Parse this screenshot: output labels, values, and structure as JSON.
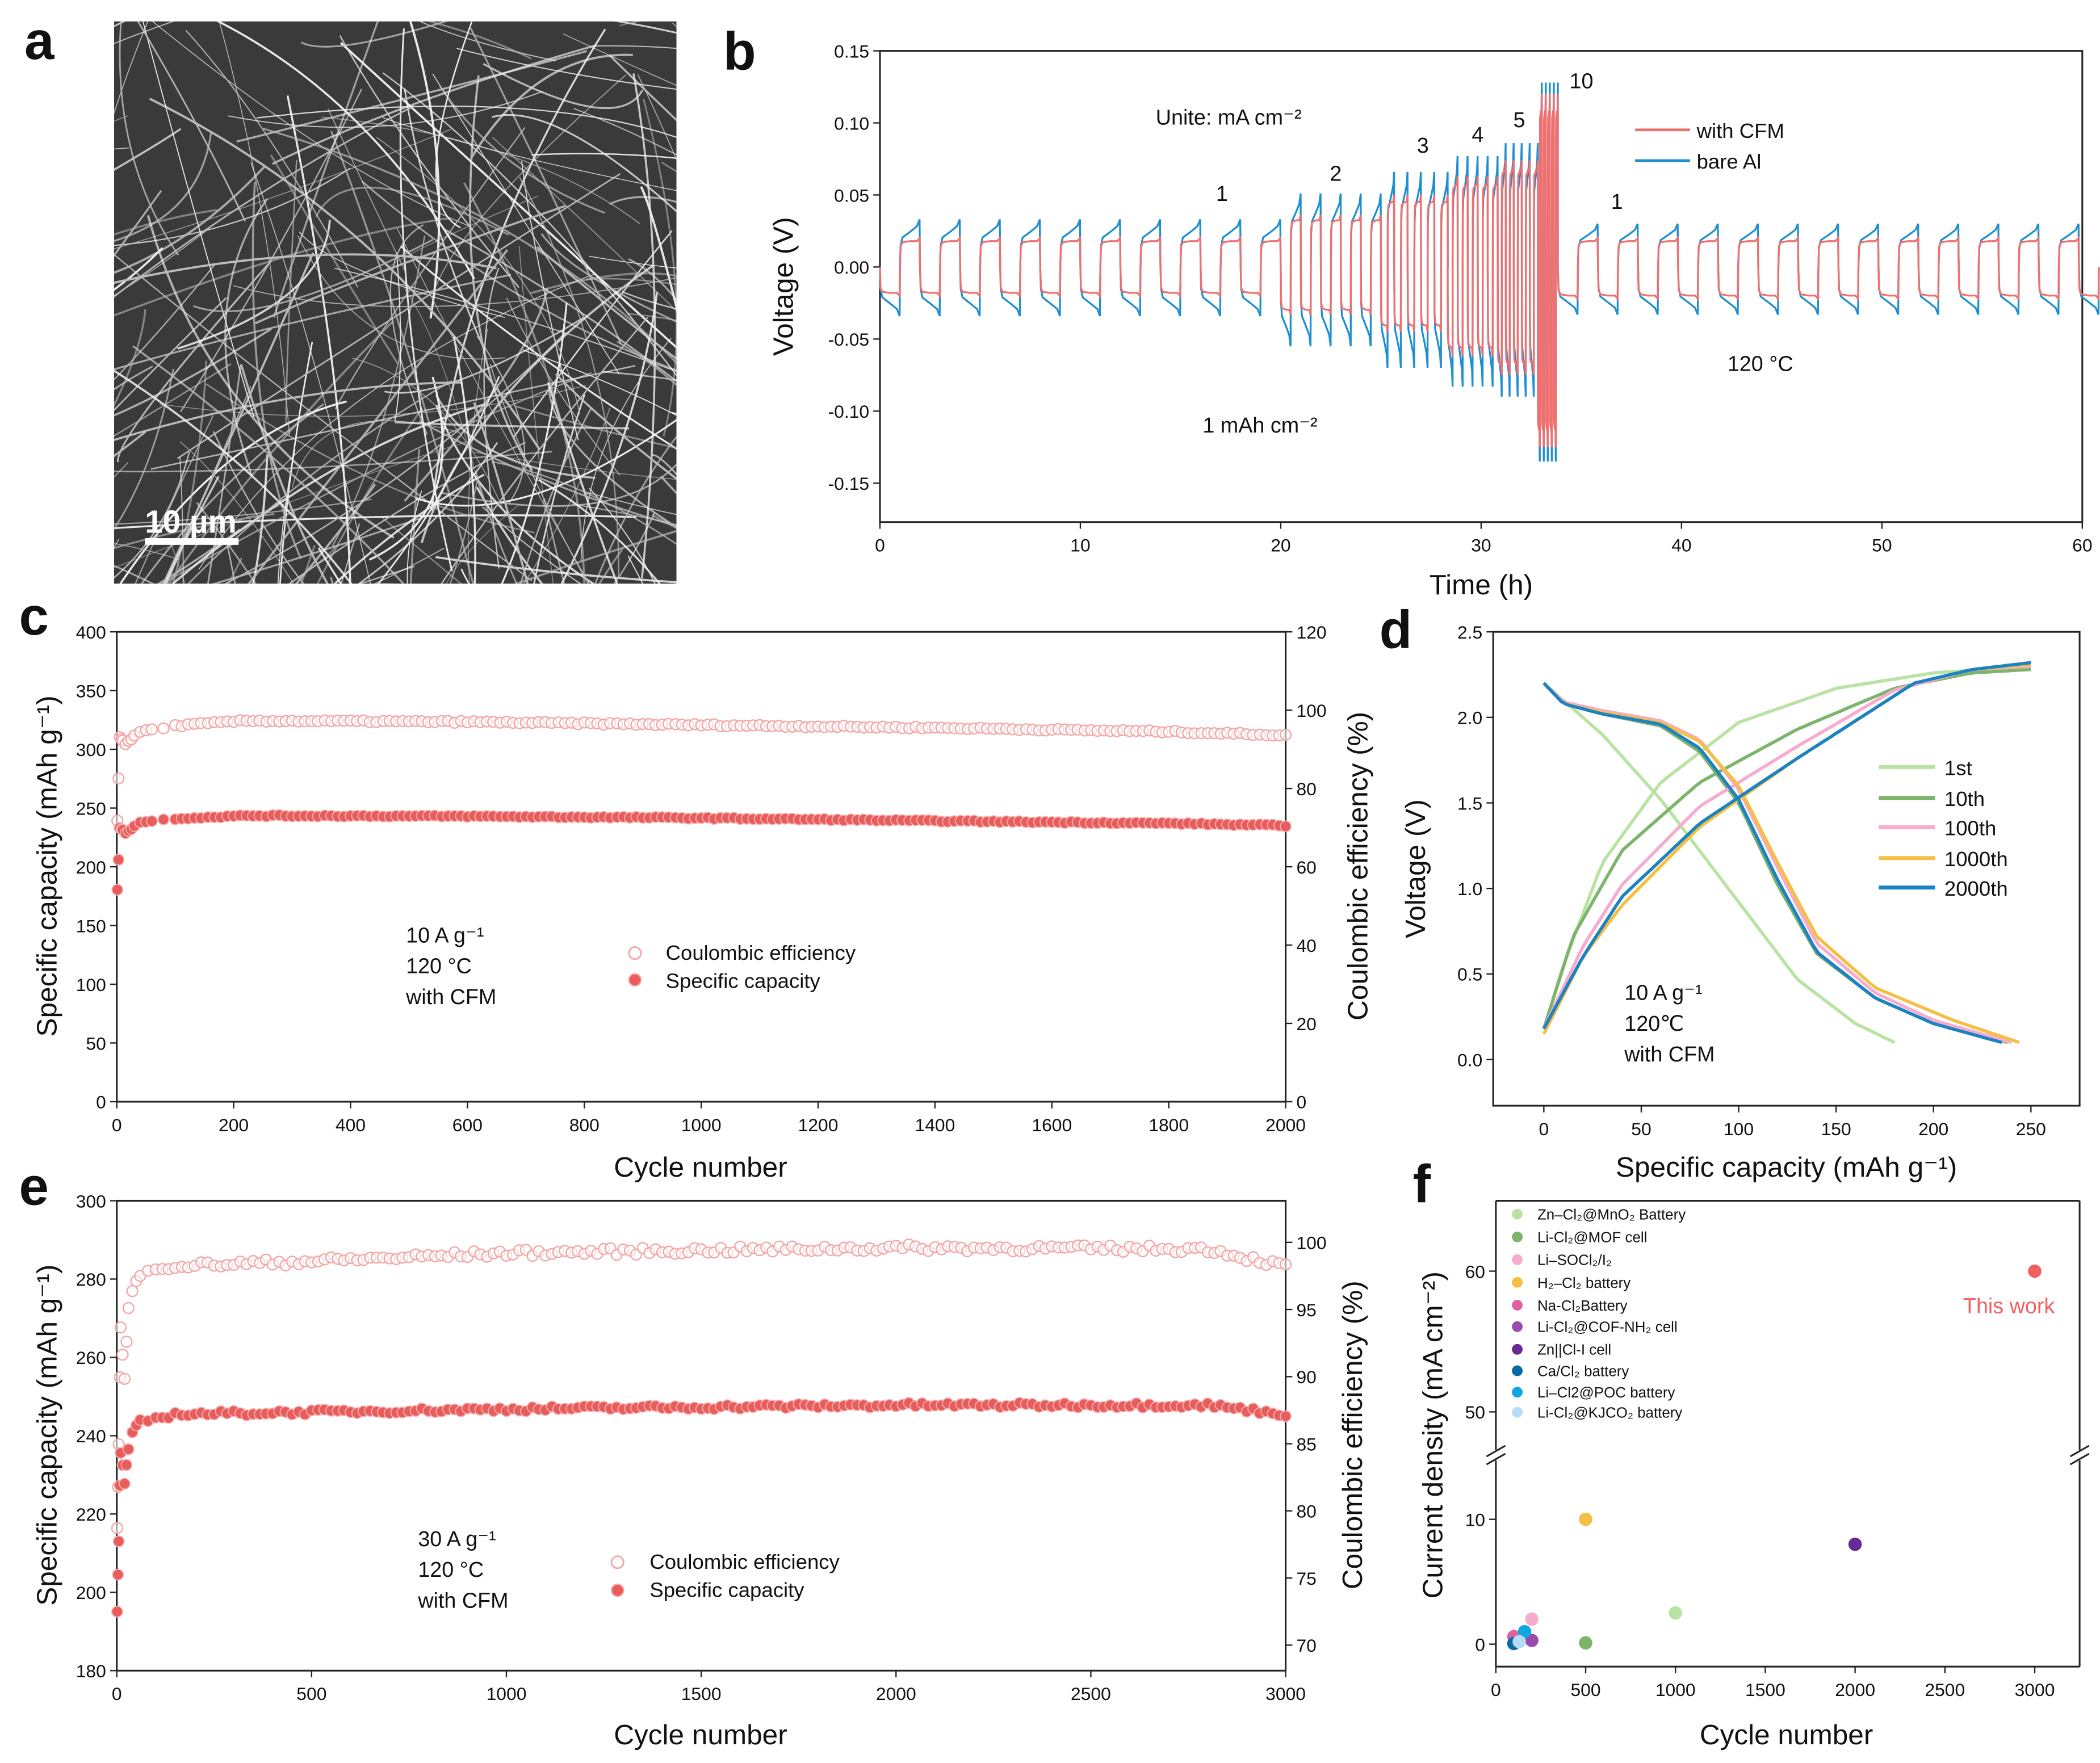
{
  "panel_labels": {
    "a": "a",
    "b": "b",
    "c": "c",
    "d": "d",
    "e": "e",
    "f": "f"
  },
  "panel_a": {
    "scale_bar_label": "10 µm",
    "image_description_colors": {
      "background": "#3a3a3a",
      "fiber": "#e8e8e8"
    }
  },
  "chart_data": [
    {
      "id": "b",
      "type": "line",
      "xlabel": "Time (h)",
      "ylabel": "Voltage (V)",
      "xlim": [
        0,
        60
      ],
      "ylim": [
        -0.177,
        0.15
      ],
      "xticks": [
        0,
        10,
        20,
        30,
        40,
        50,
        60
      ],
      "yticks": [
        -0.15,
        -0.1,
        -0.05,
        0.0,
        0.05,
        0.1,
        0.15
      ],
      "ytick_labels": [
        "-0.15",
        "-0.10",
        "-0.05",
        "0.00",
        "0.05",
        "0.10",
        "0.15"
      ],
      "series": [
        {
          "name": "with CFM",
          "color": "#f07070"
        },
        {
          "name": "bare Al",
          "color": "#1f8fd0"
        }
      ],
      "segments": [
        {
          "current": 1,
          "start": 0,
          "end": 20,
          "cfm": [
            0.02,
            -0.02
          ],
          "bare": [
            0.033,
            -0.034
          ]
        },
        {
          "current": 2,
          "start": 20,
          "end": 25,
          "cfm": [
            0.036,
            -0.033
          ],
          "bare": [
            0.051,
            -0.055
          ]
        },
        {
          "current": 3,
          "start": 25,
          "end": 28.33,
          "cfm": [
            0.05,
            -0.045
          ],
          "bare": [
            0.066,
            -0.07
          ]
        },
        {
          "current": 4,
          "start": 28.33,
          "end": 30.83,
          "cfm": [
            0.063,
            -0.062
          ],
          "bare": [
            0.077,
            -0.083
          ]
        },
        {
          "current": 5,
          "start": 30.83,
          "end": 32.83,
          "cfm": [
            0.074,
            -0.075
          ],
          "bare": [
            0.086,
            -0.09
          ]
        },
        {
          "current": 10,
          "start": 32.83,
          "end": 33.83,
          "cfm": [
            0.12,
            -0.125
          ],
          "bare": [
            0.128,
            -0.135
          ]
        },
        {
          "current": 1,
          "start": 33.83,
          "end": 60,
          "cfm": [
            0.02,
            -0.022
          ],
          "bare": [
            0.03,
            -0.033
          ]
        }
      ],
      "annotations": {
        "unit": "Unite: mA cm⁻²",
        "areal": "1 mAh cm⁻²",
        "temp": "120 °C",
        "c1": "1",
        "c2": "2",
        "c3": "3",
        "c4": "4",
        "c5": "5",
        "c10": "10",
        "c1b": "1"
      }
    },
    {
      "id": "c",
      "type": "scatter",
      "xlabel": "Cycle number",
      "ylabel": "Specific capacity (mAh g⁻¹)",
      "y2label": "Coulombic efficiency (%)",
      "xlim": [
        0,
        2000
      ],
      "ylim": [
        0,
        400
      ],
      "y2lim": [
        0,
        120
      ],
      "xticks": [
        0,
        200,
        400,
        600,
        800,
        1000,
        1200,
        1400,
        1600,
        1800,
        2000
      ],
      "yticks": [
        0,
        50,
        100,
        150,
        200,
        250,
        300,
        350,
        400
      ],
      "y2ticks": [
        0,
        20,
        40,
        60,
        80,
        100,
        120
      ],
      "series": [
        {
          "name": "Coulombic efficiency",
          "axis": "right",
          "marker": "open-circle",
          "color": "#f3a6a6",
          "keypoints": [
            [
              1,
              72
            ],
            [
              5,
              93
            ],
            [
              15,
              91.5
            ],
            [
              40,
              94.5
            ],
            [
              100,
              96
            ],
            [
              220,
              97.3
            ],
            [
              600,
              97
            ],
            [
              1000,
              96.2
            ],
            [
              1400,
              95.5
            ],
            [
              1800,
              94.5
            ],
            [
              2000,
              93.6
            ]
          ]
        },
        {
          "name": "Specific capacity",
          "axis": "left",
          "marker": "filled-circle",
          "color": "#e85c5c",
          "keypoints": [
            [
              1,
              180
            ],
            [
              5,
              233
            ],
            [
              15,
              229
            ],
            [
              40,
              238
            ],
            [
              100,
              241
            ],
            [
              220,
              243.5
            ],
            [
              600,
              243
            ],
            [
              1000,
              241.5
            ],
            [
              1400,
              239
            ],
            [
              1800,
              237
            ],
            [
              2000,
              235
            ]
          ]
        }
      ],
      "annotations": [
        "10 A g⁻¹",
        "120 °C",
        "with CFM"
      ]
    },
    {
      "id": "d",
      "type": "line",
      "xlabel": "Specific capacity (mAh g⁻¹)",
      "ylabel": "Voltage (V)",
      "xlim": [
        -26,
        275
      ],
      "ylim": [
        -0.27,
        2.5
      ],
      "xticks": [
        0,
        50,
        100,
        150,
        200,
        250
      ],
      "yticks": [
        0,
        0.5,
        1,
        1.5,
        2,
        2.5
      ],
      "ytick_labels": [
        "0.0",
        "0.5",
        "1.0",
        "1.5",
        "2.0",
        "2.5"
      ],
      "series": [
        {
          "name": "1st",
          "color": "#b8e3a2",
          "discharge": [
            [
              0,
              2.2
            ],
            [
              10,
              2.1
            ],
            [
              30,
              1.9
            ],
            [
              60,
              1.52
            ],
            [
              100,
              0.92
            ],
            [
              130,
              0.47
            ],
            [
              160,
              0.21
            ],
            [
              180,
              0.1
            ]
          ],
          "charge": [
            [
              0,
              0.18
            ],
            [
              10,
              0.55
            ],
            [
              30,
              1.15
            ],
            [
              60,
              1.62
            ],
            [
              100,
              1.97
            ],
            [
              150,
              2.17
            ],
            [
              200,
              2.26
            ],
            [
              250,
              2.3
            ]
          ]
        },
        {
          "name": "10th",
          "color": "#7db46b",
          "discharge": [
            [
              0,
              2.2
            ],
            [
              10,
              2.08
            ],
            [
              30,
              2.02
            ],
            [
              60,
              1.95
            ],
            [
              80,
              1.8
            ],
            [
              100,
              1.5
            ],
            [
              120,
              1.02
            ],
            [
              140,
              0.62
            ],
            [
              170,
              0.36
            ],
            [
              200,
              0.21
            ],
            [
              238,
              0.1
            ]
          ],
          "charge": [
            [
              0,
              0.18
            ],
            [
              15,
              0.72
            ],
            [
              40,
              1.22
            ],
            [
              80,
              1.62
            ],
            [
              130,
              1.93
            ],
            [
              180,
              2.17
            ],
            [
              220,
              2.26
            ],
            [
              250,
              2.28
            ]
          ]
        },
        {
          "name": "100th",
          "color": "#f6abcf",
          "discharge": [
            [
              0,
              2.2
            ],
            [
              10,
              2.09
            ],
            [
              30,
              2.04
            ],
            [
              60,
              1.98
            ],
            [
              80,
              1.87
            ],
            [
              100,
              1.58
            ],
            [
              120,
              1.12
            ],
            [
              140,
              0.68
            ],
            [
              170,
              0.39
            ],
            [
              200,
              0.23
            ],
            [
              240,
              0.1
            ]
          ],
          "charge": [
            [
              0,
              0.18
            ],
            [
              20,
              0.66
            ],
            [
              40,
              1.02
            ],
            [
              80,
              1.48
            ],
            [
              130,
              1.83
            ],
            [
              180,
              2.16
            ],
            [
              220,
              2.28
            ],
            [
              250,
              2.3
            ]
          ]
        },
        {
          "name": "1000th",
          "color": "#f4c043",
          "discharge": [
            [
              0,
              2.2
            ],
            [
              10,
              2.08
            ],
            [
              30,
              2.03
            ],
            [
              60,
              1.97
            ],
            [
              80,
              1.86
            ],
            [
              100,
              1.6
            ],
            [
              120,
              1.15
            ],
            [
              140,
              0.72
            ],
            [
              170,
              0.42
            ],
            [
              210,
              0.23
            ],
            [
              244,
              0.1
            ]
          ],
          "charge": [
            [
              0,
              0.15
            ],
            [
              20,
              0.6
            ],
            [
              40,
              0.9
            ],
            [
              80,
              1.36
            ],
            [
              130,
              1.76
            ],
            [
              190,
              2.2
            ],
            [
              220,
              2.28
            ],
            [
              250,
              2.31
            ]
          ]
        },
        {
          "name": "2000th",
          "color": "#1b82c4",
          "discharge": [
            [
              0,
              2.2
            ],
            [
              10,
              2.08
            ],
            [
              30,
              2.02
            ],
            [
              60,
              1.96
            ],
            [
              80,
              1.82
            ],
            [
              100,
              1.52
            ],
            [
              120,
              1.05
            ],
            [
              140,
              0.63
            ],
            [
              170,
              0.36
            ],
            [
              200,
              0.21
            ],
            [
              235,
              0.1
            ]
          ],
          "charge": [
            [
              0,
              0.18
            ],
            [
              20,
              0.6
            ],
            [
              40,
              0.95
            ],
            [
              80,
              1.38
            ],
            [
              130,
              1.76
            ],
            [
              190,
              2.2
            ],
            [
              220,
              2.28
            ],
            [
              250,
              2.32
            ]
          ]
        }
      ],
      "annotations": [
        "10 A g⁻¹",
        "120℃",
        "with CFM"
      ]
    },
    {
      "id": "e",
      "type": "scatter",
      "xlabel": "Cycle number",
      "ylabel": "Specific capacity (mAh g⁻¹)",
      "y2label": "Coulombic efficiency (%)",
      "xlim": [
        0,
        3000
      ],
      "ylim": [
        180,
        300
      ],
      "y2lim": [
        68.1,
        103.1
      ],
      "xticks": [
        0,
        500,
        1000,
        1500,
        2000,
        2500,
        3000
      ],
      "yticks": [
        180,
        200,
        220,
        240,
        260,
        280,
        300
      ],
      "y2ticks": [
        70,
        75,
        80,
        85,
        90,
        95,
        100
      ],
      "series": [
        {
          "name": "Coulombic efficiency",
          "axis": "right",
          "marker": "open-circle",
          "color": "#f3a6a6",
          "keypoints": [
            [
              1,
              78.5
            ],
            [
              10,
              93.5
            ],
            [
              20,
              90
            ],
            [
              30,
              95
            ],
            [
              45,
              97
            ],
            [
              100,
              98.2
            ],
            [
              500,
              98.6
            ],
            [
              1000,
              99.2
            ],
            [
              2000,
              99.6
            ],
            [
              2800,
              99.5
            ],
            [
              3000,
              98.2
            ]
          ]
        },
        {
          "name": "Specific capacity",
          "axis": "left",
          "marker": "filled-circle",
          "color": "#e85c5c",
          "keypoints": [
            [
              1,
              195
            ],
            [
              10,
              236
            ],
            [
              20,
              228
            ],
            [
              35,
              240
            ],
            [
              60,
              243.5
            ],
            [
              150,
              245.5
            ],
            [
              1000,
              246.8
            ],
            [
              2000,
              247.8
            ],
            [
              2800,
              247.8
            ],
            [
              3000,
              245.5
            ]
          ]
        }
      ],
      "annotations": [
        "30 A g⁻¹",
        "120 °C",
        "with CFM"
      ]
    },
    {
      "id": "f",
      "type": "scatter",
      "xlabel": "Cycle number",
      "ylabel": "Current density (mA cm⁻²)",
      "xlim": [
        0,
        3250
      ],
      "ylim_lower": [
        -1.8,
        14.5
      ],
      "ylim_upper": [
        47.5,
        65
      ],
      "xticks": [
        0,
        500,
        1000,
        1500,
        2000,
        2500,
        3000
      ],
      "yticks_lower": [
        0,
        10
      ],
      "yticks_upper": [
        50,
        60
      ],
      "points": [
        {
          "name": "Zn–Cl₂@MnO₂ Battery",
          "x": 1000,
          "y": 2.5,
          "color": "#b8e3a2"
        },
        {
          "name": "Li-Cl₂@MOF cell",
          "x": 500,
          "y": 0.1,
          "color": "#7db46b"
        },
        {
          "name": "Li–SOCl₂/I₂",
          "x": 200,
          "y": 2,
          "color": "#f6abcf"
        },
        {
          "name": "H₂–Cl₂ battery",
          "x": 500,
          "y": 10,
          "color": "#f4c043"
        },
        {
          "name": "Na-Cl₂Battery",
          "x": 100,
          "y": 0.6,
          "color": "#e0609e"
        },
        {
          "name": "Li-Cl₂@COF-NH₂ cell",
          "x": 200,
          "y": 0.3,
          "color": "#9a4cae"
        },
        {
          "name": "Zn||Cl-I cell",
          "x": 2000,
          "y": 8,
          "color": "#6a2a94"
        },
        {
          "name": "Ca/Cl₂ battery",
          "x": 100,
          "y": 0.05,
          "color": "#0a6aa6"
        },
        {
          "name": "Li–Cl2@POC battery",
          "x": 160,
          "y": 1,
          "color": "#12a6e0"
        },
        {
          "name": "Li-Cl₂@KJCO₂ battery",
          "x": 130,
          "y": 0.2,
          "color": "#b4dcf2"
        }
      ],
      "this_work": {
        "label": "This work",
        "x": 3000,
        "y": 60,
        "color": "#f06060"
      }
    }
  ]
}
